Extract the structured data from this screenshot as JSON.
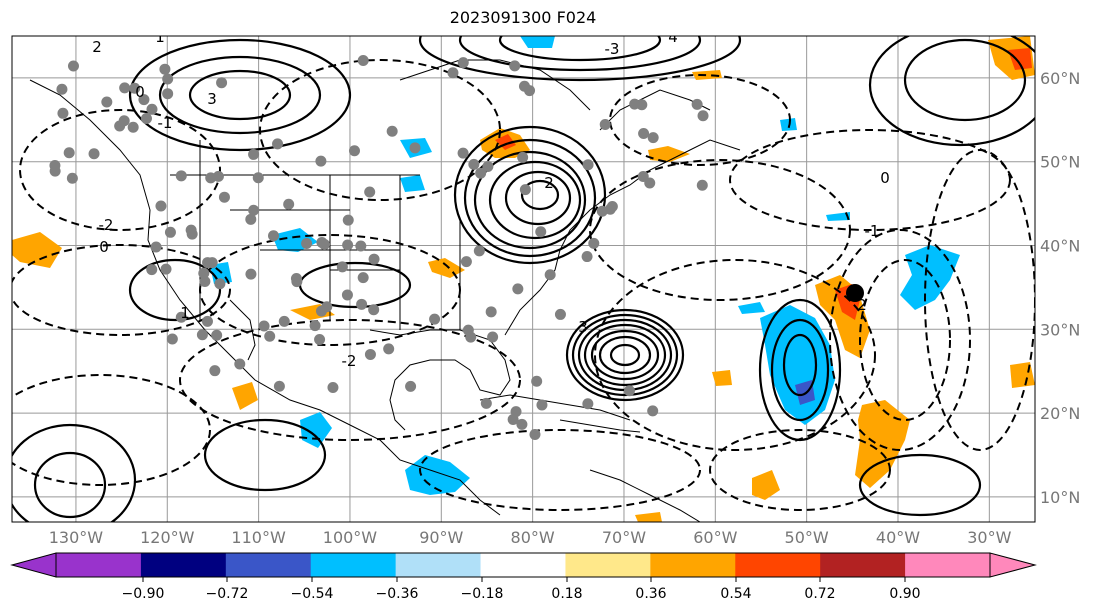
{
  "title": "2023091300 F024",
  "map": {
    "lon_range": [
      -137,
      -25
    ],
    "lat_range": [
      7,
      65
    ],
    "lon_ticks": [
      "130°W",
      "120°W",
      "110°W",
      "100°W",
      "90°W",
      "80°W",
      "70°W",
      "60°W",
      "50°W",
      "40°W",
      "30°W"
    ],
    "lat_ticks": [
      "60°N",
      "50°N",
      "40°N",
      "30°N",
      "20°N",
      "10°N"
    ],
    "grid": true
  },
  "colorbar": {
    "ticks": [
      "−0.90",
      "−0.72",
      "−0.54",
      "−0.36",
      "−0.18",
      "0.18",
      "0.36",
      "0.54",
      "0.72",
      "0.90"
    ],
    "colors": [
      "#9933cc",
      "#000080",
      "#3a56c8",
      "#00bfff",
      "#b0e0f8",
      "#ffffff",
      "#ffe88a",
      "#ffa500",
      "#ff4500",
      "#b22222",
      "#ff88bb"
    ]
  },
  "contour_labels": [
    "2",
    "1",
    "3",
    "0",
    "-1",
    "-2",
    "4",
    "-3",
    "1",
    "2",
    "0",
    "3",
    "-2",
    "-1",
    "0",
    "2"
  ],
  "colors": {
    "grid": "#999999",
    "coast": "#000000",
    "dots": "#808080"
  }
}
